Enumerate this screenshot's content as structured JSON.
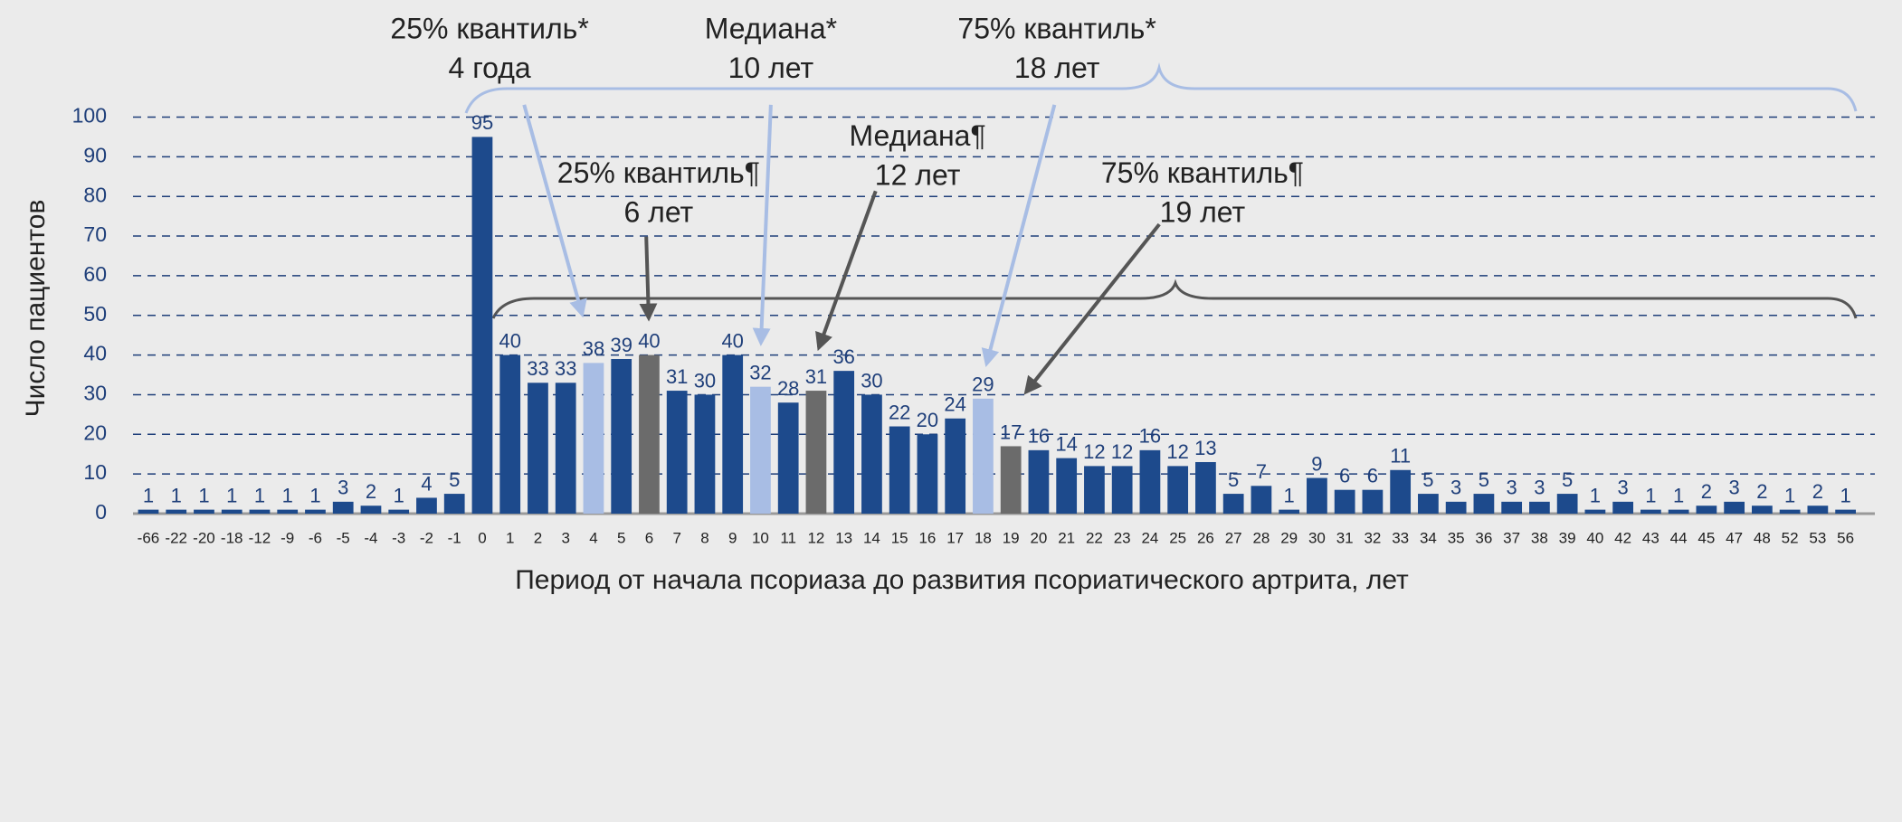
{
  "chart_data": {
    "type": "bar",
    "ylabel": "Число пациентов",
    "xlabel": "Период от начала псориаза до развития псориатического артрита, лет",
    "categories": [
      "-66",
      "-22",
      "-20",
      "-18",
      "-12",
      "-9",
      "-6",
      "-5",
      "-4",
      "-3",
      "-2",
      "-1",
      "0",
      "1",
      "2",
      "3",
      "4",
      "5",
      "6",
      "7",
      "8",
      "9",
      "10",
      "11",
      "12",
      "13",
      "14",
      "15",
      "16",
      "17",
      "18",
      "19",
      "20",
      "21",
      "22",
      "23",
      "24",
      "25",
      "26",
      "27",
      "28",
      "29",
      "30",
      "31",
      "32",
      "33",
      "34",
      "35",
      "36",
      "37",
      "38",
      "39",
      "40",
      "42",
      "43",
      "44",
      "45",
      "47",
      "48",
      "52",
      "53",
      "56"
    ],
    "values": [
      1,
      1,
      1,
      1,
      1,
      1,
      1,
      3,
      2,
      1,
      4,
      5,
      95,
      40,
      33,
      33,
      38,
      39,
      40,
      31,
      30,
      40,
      32,
      28,
      31,
      36,
      30,
      22,
      20,
      24,
      29,
      17,
      16,
      14,
      12,
      12,
      16,
      12,
      13,
      5,
      7,
      1,
      9,
      6,
      6,
      11,
      5,
      3,
      5,
      3,
      3,
      5,
      1,
      3,
      1,
      1,
      2,
      3,
      2,
      1,
      2,
      1
    ],
    "colors": [
      "#1d4a8c",
      "#1d4a8c",
      "#1d4a8c",
      "#1d4a8c",
      "#1d4a8c",
      "#1d4a8c",
      "#1d4a8c",
      "#1d4a8c",
      "#1d4a8c",
      "#1d4a8c",
      "#1d4a8c",
      "#1d4a8c",
      "#1d4a8c",
      "#1d4a8c",
      "#1d4a8c",
      "#1d4a8c",
      "#a8bde4",
      "#1d4a8c",
      "#6b6b6b",
      "#1d4a8c",
      "#1d4a8c",
      "#1d4a8c",
      "#a8bde4",
      "#1d4a8c",
      "#6b6b6b",
      "#1d4a8c",
      "#1d4a8c",
      "#1d4a8c",
      "#1d4a8c",
      "#1d4a8c",
      "#a8bde4",
      "#6b6b6b",
      "#1d4a8c",
      "#1d4a8c",
      "#1d4a8c",
      "#1d4a8c",
      "#1d4a8c",
      "#1d4a8c",
      "#1d4a8c",
      "#1d4a8c",
      "#1d4a8c",
      "#1d4a8c",
      "#1d4a8c",
      "#1d4a8c",
      "#1d4a8c",
      "#1d4a8c",
      "#1d4a8c",
      "#1d4a8c",
      "#1d4a8c",
      "#1d4a8c",
      "#1d4a8c",
      "#1d4a8c",
      "#1d4a8c",
      "#1d4a8c",
      "#1d4a8c",
      "#1d4a8c",
      "#1d4a8c",
      "#1d4a8c",
      "#1d4a8c",
      "#1d4a8c",
      "#1d4a8c",
      "#1d4a8c"
    ],
    "ylim": [
      0,
      100
    ],
    "yticks": [
      0,
      10,
      20,
      30,
      40,
      50,
      60,
      70,
      80,
      90,
      100
    ],
    "grid": true,
    "annotations": [
      [
        "25% квантиль*",
        "4 года"
      ],
      [
        "Медиана*",
        "10 лет"
      ],
      [
        "75% квантиль*",
        "18 лет"
      ],
      [
        "25% квантиль¶",
        "6 лет"
      ],
      [
        "Медиана¶",
        "12 лет"
      ],
      [
        "75% квантиль¶",
        "19 лет"
      ]
    ]
  }
}
